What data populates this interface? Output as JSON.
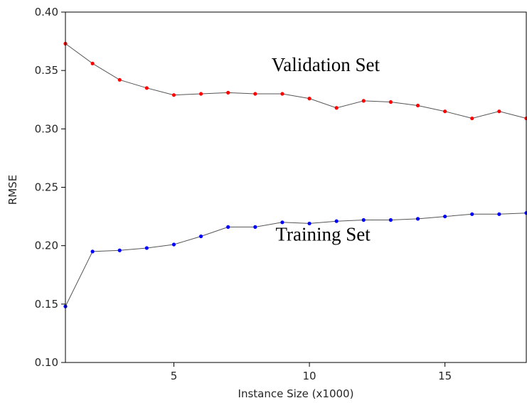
{
  "chart_data": {
    "type": "line",
    "xlabel": "Instance Size (x1000)",
    "ylabel": "RMSE",
    "xlim": [
      1,
      18
    ],
    "ylim": [
      0.1,
      0.4
    ],
    "xticks": [
      5,
      10,
      15
    ],
    "xtick_labels": [
      "5",
      "10",
      "15"
    ],
    "yticks": [
      0.1,
      0.15,
      0.2,
      0.25,
      0.3,
      0.35,
      0.4
    ],
    "ytick_labels": [
      "0.10",
      "0.15",
      "0.20",
      "0.25",
      "0.30",
      "0.35",
      "0.40"
    ],
    "grid": false,
    "x": [
      1,
      2,
      3,
      4,
      5,
      6,
      7,
      8,
      9,
      10,
      11,
      12,
      13,
      14,
      15,
      16,
      17,
      18
    ],
    "series": [
      {
        "values": [
          0.373,
          0.356,
          0.342,
          0.335,
          0.329,
          0.33,
          0.331,
          0.33,
          0.33,
          0.326,
          0.318,
          0.324,
          0.323,
          0.32,
          0.315,
          0.309,
          0.315,
          0.309
        ],
        "marker_color": "#ff0000",
        "line_color": "#555555"
      },
      {
        "values": [
          0.148,
          0.195,
          0.196,
          0.198,
          0.201,
          0.208,
          0.216,
          0.216,
          0.22,
          0.219,
          0.221,
          0.222,
          0.222,
          0.223,
          0.225,
          0.227,
          0.227,
          0.228
        ],
        "marker_color": "#0000ff",
        "line_color": "#555555"
      }
    ],
    "annotations": [
      {
        "text": "Validation Set",
        "x": 10.6,
        "y": 0.3495
      },
      {
        "text": "Training Set",
        "x": 10.5,
        "y": 0.2045
      }
    ]
  }
}
